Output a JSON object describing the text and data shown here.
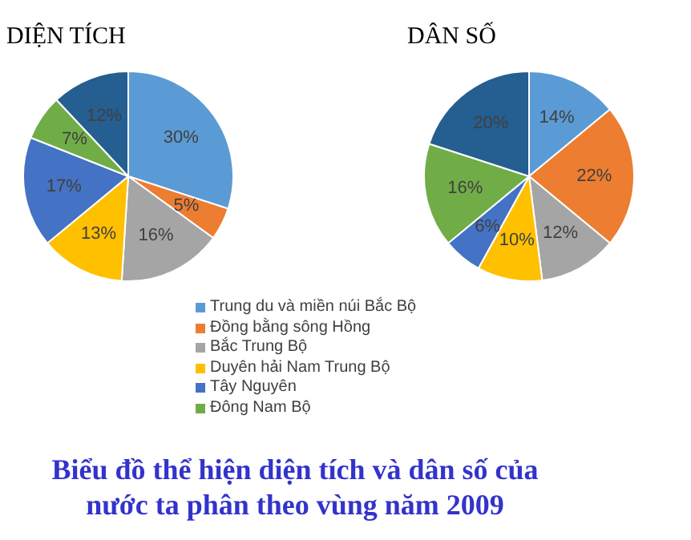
{
  "chart_data": [
    {
      "type": "pie",
      "title": "DIỆN TÍCH",
      "categories": [
        "Trung du và miền núi Bắc Bộ",
        "Đồng bằng sông Hồng",
        "Bắc Trung Bộ",
        "Duyên hải Nam Trung Bộ",
        "Tây Nguyên",
        "Đông Nam Bộ",
        null
      ],
      "values": [
        30,
        5,
        16,
        13,
        17,
        7,
        12
      ],
      "value_labels": [
        "30%",
        "5%",
        "16%",
        "13%",
        "17%",
        "7%",
        "12%"
      ],
      "colors": [
        "#5b9bd5",
        "#ed7d31",
        "#a5a5a5",
        "#ffc000",
        "#4472c4",
        "#70ad47",
        "#255e91"
      ],
      "legend": "bottom",
      "annotations": [
        "Biểu đồ thể hiện diện tích và dân số của nước ta phân theo vùng năm 2009"
      ]
    },
    {
      "type": "pie",
      "title": "DÂN SỐ",
      "categories": [
        null,
        null,
        null,
        null,
        null,
        null,
        null
      ],
      "values": [
        14,
        22,
        12,
        10,
        6,
        16,
        20
      ],
      "value_labels": [
        "14%",
        "22%",
        "12%",
        "10%",
        "6%",
        "16%",
        "20%"
      ],
      "colors": [
        "#5b9bd5",
        "#ed7d31",
        "#a5a5a5",
        "#ffc000",
        "#4472c4",
        "#70ad47",
        "#255e91"
      ]
    }
  ]
}
